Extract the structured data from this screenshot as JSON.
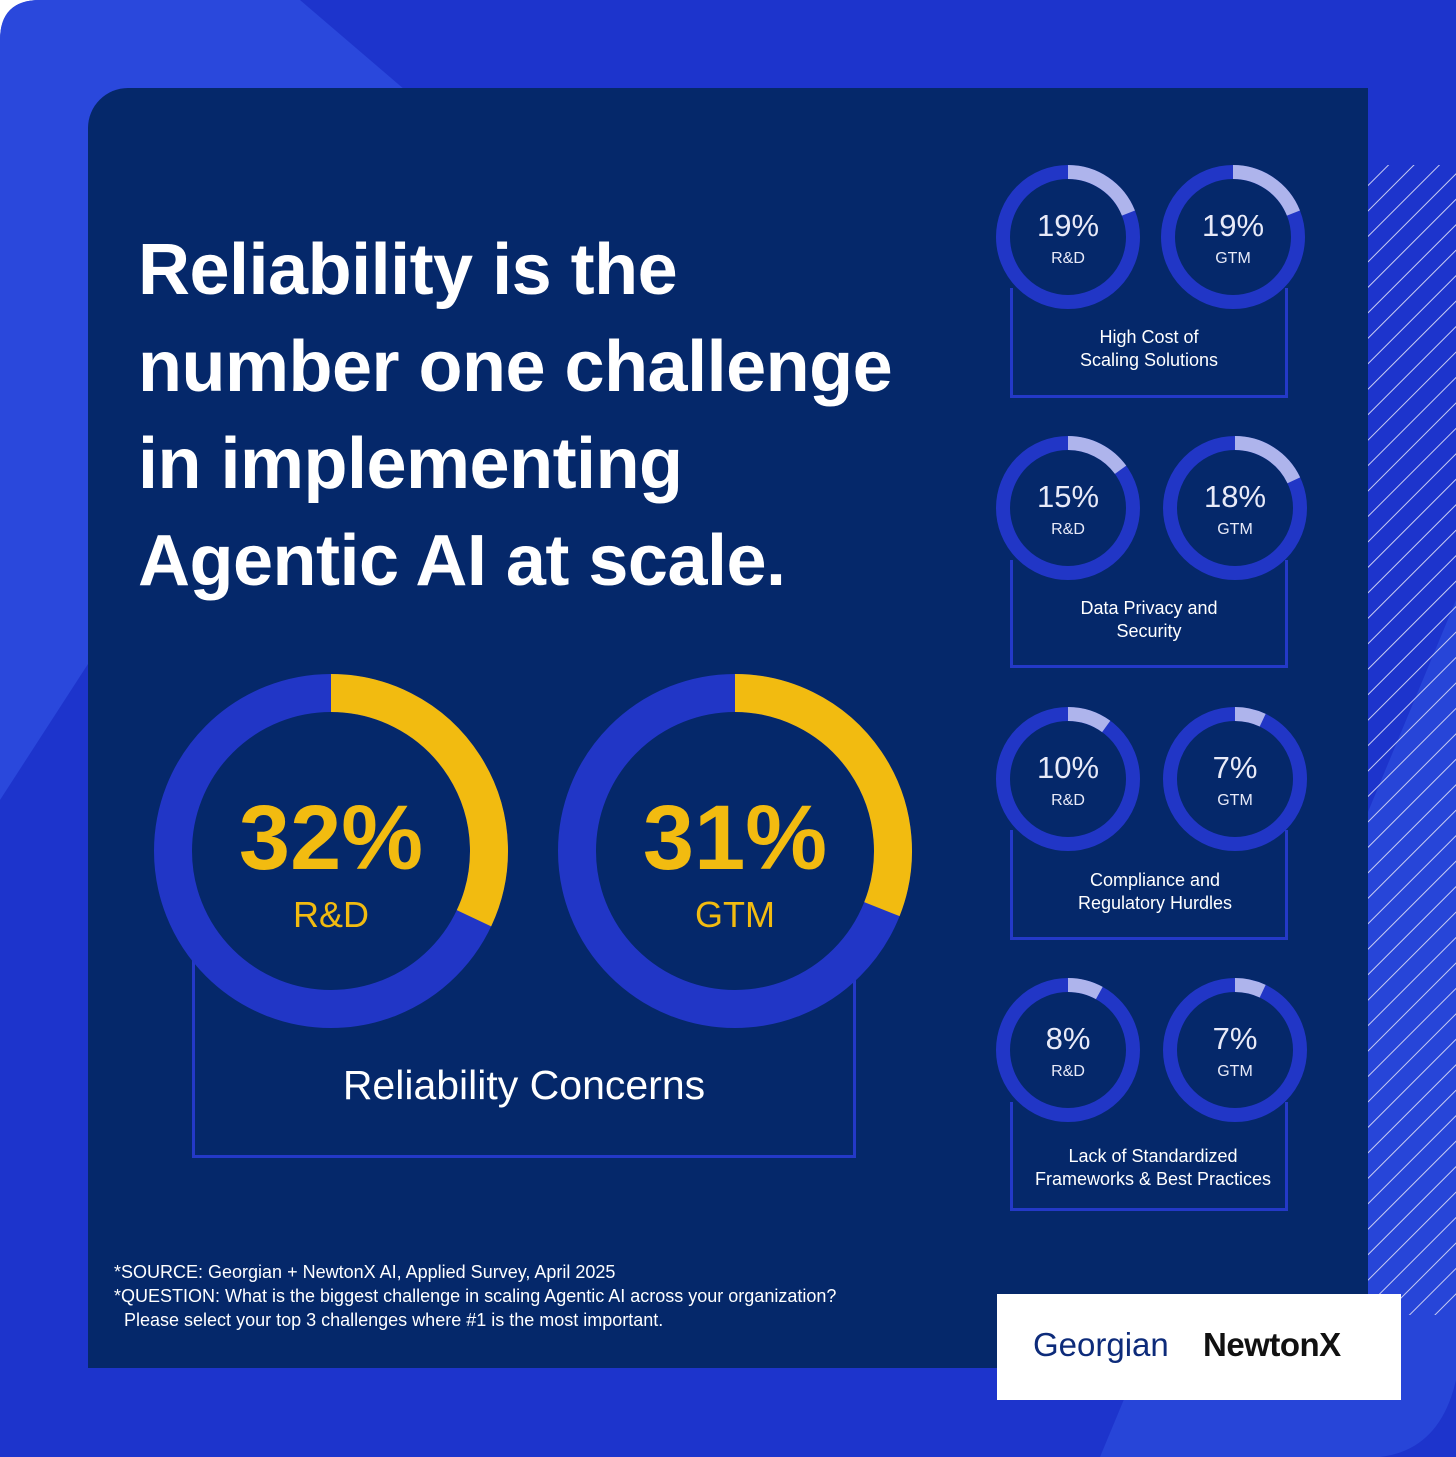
{
  "headline": [
    "Reliability is the",
    "number one challenge",
    "in implementing",
    "Agentic AI at scale."
  ],
  "colors": {
    "background_blue": "#1d34cc",
    "panel_navy": "#05286a",
    "ring_track": "#2136c6",
    "accent_yellow": "#f2bb10",
    "ring_light": "#aeb4ec"
  },
  "chart_data": [
    {
      "type": "pie",
      "title": "Reliability Concerns",
      "categories": [
        "R&D",
        "GTM"
      ],
      "values": [
        32,
        31
      ],
      "labels": [
        "32%",
        "31%"
      ]
    },
    {
      "type": "pie",
      "title": "High Cost of Scaling Solutions",
      "categories": [
        "R&D",
        "GTM"
      ],
      "values": [
        19,
        19
      ],
      "labels": [
        "19%",
        "19%"
      ]
    },
    {
      "type": "pie",
      "title": "Data Privacy and Security",
      "categories": [
        "R&D",
        "GTM"
      ],
      "values": [
        15,
        18
      ],
      "labels": [
        "15%",
        "18%"
      ]
    },
    {
      "type": "pie",
      "title": "Compliance and Regulatory Hurdles",
      "categories": [
        "R&D",
        "GTM"
      ],
      "values": [
        10,
        7
      ],
      "labels": [
        "10%",
        "7%"
      ]
    },
    {
      "type": "pie",
      "title": "Lack of Standardized Frameworks & Best Practices",
      "categories": [
        "R&D",
        "GTM"
      ],
      "values": [
        8,
        7
      ],
      "labels": [
        "8%",
        "7%"
      ]
    }
  ],
  "captions": {
    "reliability": "Reliability Concerns",
    "cost": [
      "High Cost of",
      "Scaling Solutions"
    ],
    "privacy": [
      "Data Privacy and",
      "Security"
    ],
    "compliance": [
      "Compliance and",
      "Regulatory Hurdles"
    ],
    "standards": [
      "Lack of Standardized",
      "Frameworks & Best Practices"
    ]
  },
  "source_lines": [
    "*SOURCE: Georgian + NewtonX AI, Applied Survey, April 2025",
    "*QUESTION: What is the biggest challenge in scaling Agentic AI across your organization?",
    "  Please select your top 3 challenges where #1 is the most important."
  ],
  "logos": {
    "georgian": "Georgian",
    "newtonx": "NewtonX"
  }
}
